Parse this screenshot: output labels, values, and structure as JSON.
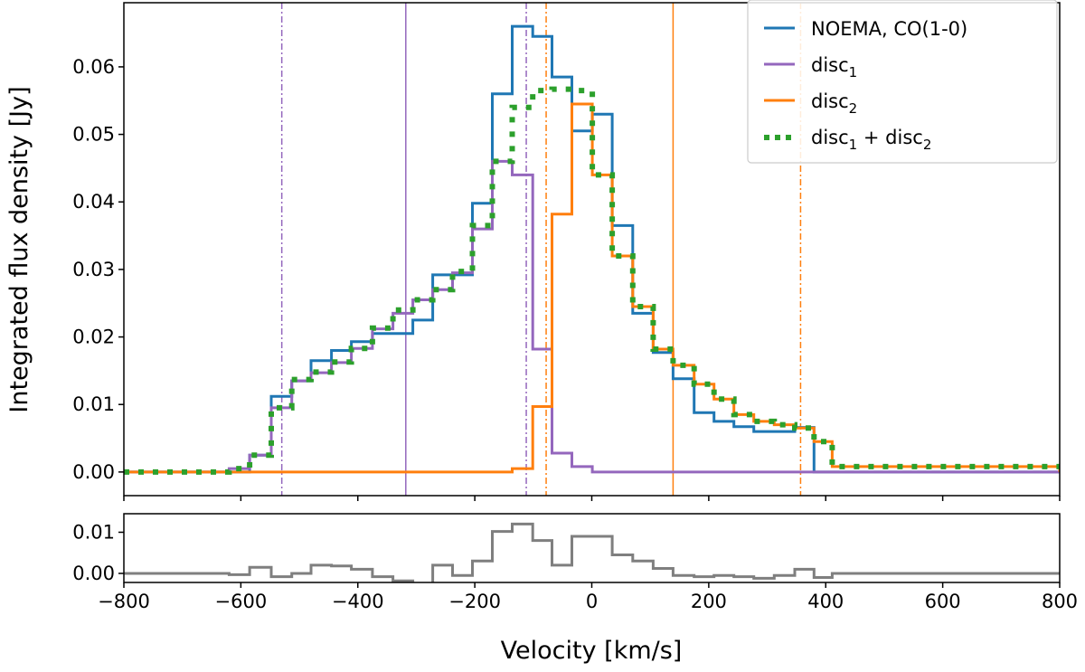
{
  "chart_data": [
    {
      "type": "line",
      "panel": "main",
      "ylabel": "Integrated flux density [Jy]",
      "xlim": [
        -800,
        800
      ],
      "ylim": [
        -0.0035,
        0.0695
      ],
      "x_ticks": [
        -800,
        -600,
        -400,
        -200,
        0,
        200,
        400,
        600,
        800
      ],
      "y_ticks": [
        0.0,
        0.01,
        0.02,
        0.03,
        0.04,
        0.05,
        0.06
      ],
      "y_tick_labels": [
        "0.00",
        "0.01",
        "0.02",
        "0.03",
        "0.04",
        "0.05",
        "0.06"
      ],
      "legend": {
        "placement": "top-right",
        "entries": [
          {
            "text": "NOEMA, CO(1-0)"
          },
          {
            "base": "disc",
            "sub": "1"
          },
          {
            "base": "disc",
            "sub": "2"
          },
          {
            "base1": "disc",
            "sub1": "1",
            "mid": " + ",
            "base2": "disc",
            "sub2": "2"
          }
        ]
      },
      "colors": {
        "noema": "#1f77b4",
        "disc1": "#9467bd",
        "disc2": "#ff7f0e",
        "sum": "#2ca02c",
        "residual": "#7f7f7f"
      },
      "vlines": [
        {
          "x": -530,
          "series": "disc1",
          "style": "dashdot"
        },
        {
          "x": -318,
          "series": "disc1",
          "style": "solid"
        },
        {
          "x": -112,
          "series": "disc1",
          "style": "dashdot"
        },
        {
          "x": -78,
          "series": "disc2",
          "style": "dashdot"
        },
        {
          "x": 139,
          "series": "disc2",
          "style": "solid"
        },
        {
          "x": 357,
          "series": "disc2",
          "style": "dashdot"
        }
      ],
      "series": [
        {
          "name": "NOEMA, CO(1-0)",
          "key": "noema",
          "step_edges": [
            -800,
            -620,
            -585,
            -548,
            -513,
            -480,
            -445,
            -411,
            -375,
            -340,
            -306,
            -272,
            -238,
            -204,
            -170,
            -136,
            -101,
            -68,
            -34,
            1,
            35,
            70,
            105,
            139,
            175,
            209,
            243,
            277,
            312,
            347,
            380,
            800
          ],
          "values": [
            0.0,
            0.0,
            0.0025,
            0.0112,
            0.0135,
            0.0165,
            0.018,
            0.0193,
            0.0205,
            0.0205,
            0.0225,
            0.0292,
            0.0292,
            0.0398,
            0.056,
            0.066,
            0.0645,
            0.0585,
            0.0505,
            0.053,
            0.0365,
            0.0235,
            0.0177,
            0.0138,
            0.0088,
            0.0075,
            0.0067,
            0.006,
            0.006,
            0.0066,
            0.0,
            0.0
          ]
        },
        {
          "name": "disc1",
          "key": "disc1",
          "step_edges": [
            -800,
            -620,
            -585,
            -548,
            -513,
            -480,
            -445,
            -411,
            -375,
            -340,
            -306,
            -272,
            -238,
            -204,
            -170,
            -136,
            -101,
            -68,
            -34,
            1,
            800
          ],
          "values": [
            0.0,
            0.0005,
            0.0025,
            0.0095,
            0.0135,
            0.0147,
            0.0162,
            0.0183,
            0.0212,
            0.0235,
            0.0255,
            0.027,
            0.0295,
            0.036,
            0.046,
            0.044,
            0.0182,
            0.0028,
            0.0008,
            0.0,
            0.0
          ]
        },
        {
          "name": "disc2",
          "key": "disc2",
          "step_edges": [
            -800,
            -170,
            -136,
            -101,
            -68,
            -34,
            1,
            35,
            70,
            105,
            139,
            175,
            209,
            243,
            277,
            312,
            347,
            380,
            411,
            800
          ],
          "values": [
            0.0,
            0.0,
            0.0005,
            0.0097,
            0.0382,
            0.0545,
            0.044,
            0.032,
            0.0245,
            0.0182,
            0.0158,
            0.013,
            0.0108,
            0.0085,
            0.0075,
            0.007,
            0.0065,
            0.0045,
            0.0008,
            0.0
          ]
        },
        {
          "name": "disc1 + disc2",
          "key": "sum",
          "step_edges": [
            -800,
            -620,
            -585,
            -548,
            -513,
            -480,
            -445,
            -411,
            -375,
            -340,
            -306,
            -272,
            -238,
            -204,
            -170,
            -136,
            -101,
            -68,
            -34,
            1,
            35,
            70,
            105,
            139,
            175,
            209,
            243,
            277,
            312,
            347,
            380,
            411,
            800
          ],
          "values": [
            0.0,
            0.0005,
            0.0025,
            0.0095,
            0.0137,
            0.0148,
            0.0163,
            0.0183,
            0.0213,
            0.024,
            0.0255,
            0.027,
            0.0297,
            0.0365,
            0.046,
            0.054,
            0.0565,
            0.0567,
            0.0565,
            0.044,
            0.032,
            0.0245,
            0.0182,
            0.0158,
            0.013,
            0.0108,
            0.0085,
            0.0075,
            0.007,
            0.0065,
            0.0045,
            0.0008,
            0.0
          ]
        }
      ]
    },
    {
      "type": "line",
      "panel": "residual",
      "xlabel": "Velocity [km/s]",
      "xlim": [
        -800,
        800
      ],
      "ylim": [
        -0.0022,
        0.0145
      ],
      "x_ticks": [
        -800,
        -600,
        -400,
        -200,
        0,
        200,
        400,
        600,
        800
      ],
      "x_tick_labels": [
        "−800",
        "−600",
        "−400",
        "−200",
        "0",
        "200",
        "400",
        "600",
        "800"
      ],
      "y_ticks": [
        0.0,
        0.01
      ],
      "y_tick_labels": [
        "0.00",
        "0.01"
      ],
      "series": [
        {
          "name": "residual",
          "key": "residual",
          "step_edges": [
            -800,
            -620,
            -585,
            -548,
            -513,
            -480,
            -445,
            -411,
            -375,
            -340,
            -306,
            -272,
            -238,
            -204,
            -170,
            -136,
            -101,
            -68,
            -34,
            1,
            35,
            70,
            105,
            139,
            175,
            209,
            243,
            277,
            312,
            347,
            380,
            411,
            800
          ],
          "values": [
            0.0,
            -0.0003,
            0.0015,
            -0.0008,
            0.0,
            0.002,
            0.0018,
            0.001,
            -0.0008,
            -0.0018,
            -0.0025,
            0.002,
            -0.0005,
            0.003,
            0.0102,
            0.012,
            0.008,
            0.002,
            0.009,
            0.009,
            0.0045,
            0.003,
            0.0012,
            -0.0005,
            -0.0008,
            -0.0005,
            -0.0008,
            -0.0012,
            -0.0005,
            0.001,
            -0.001,
            0.0,
            0.0
          ]
        }
      ]
    }
  ]
}
